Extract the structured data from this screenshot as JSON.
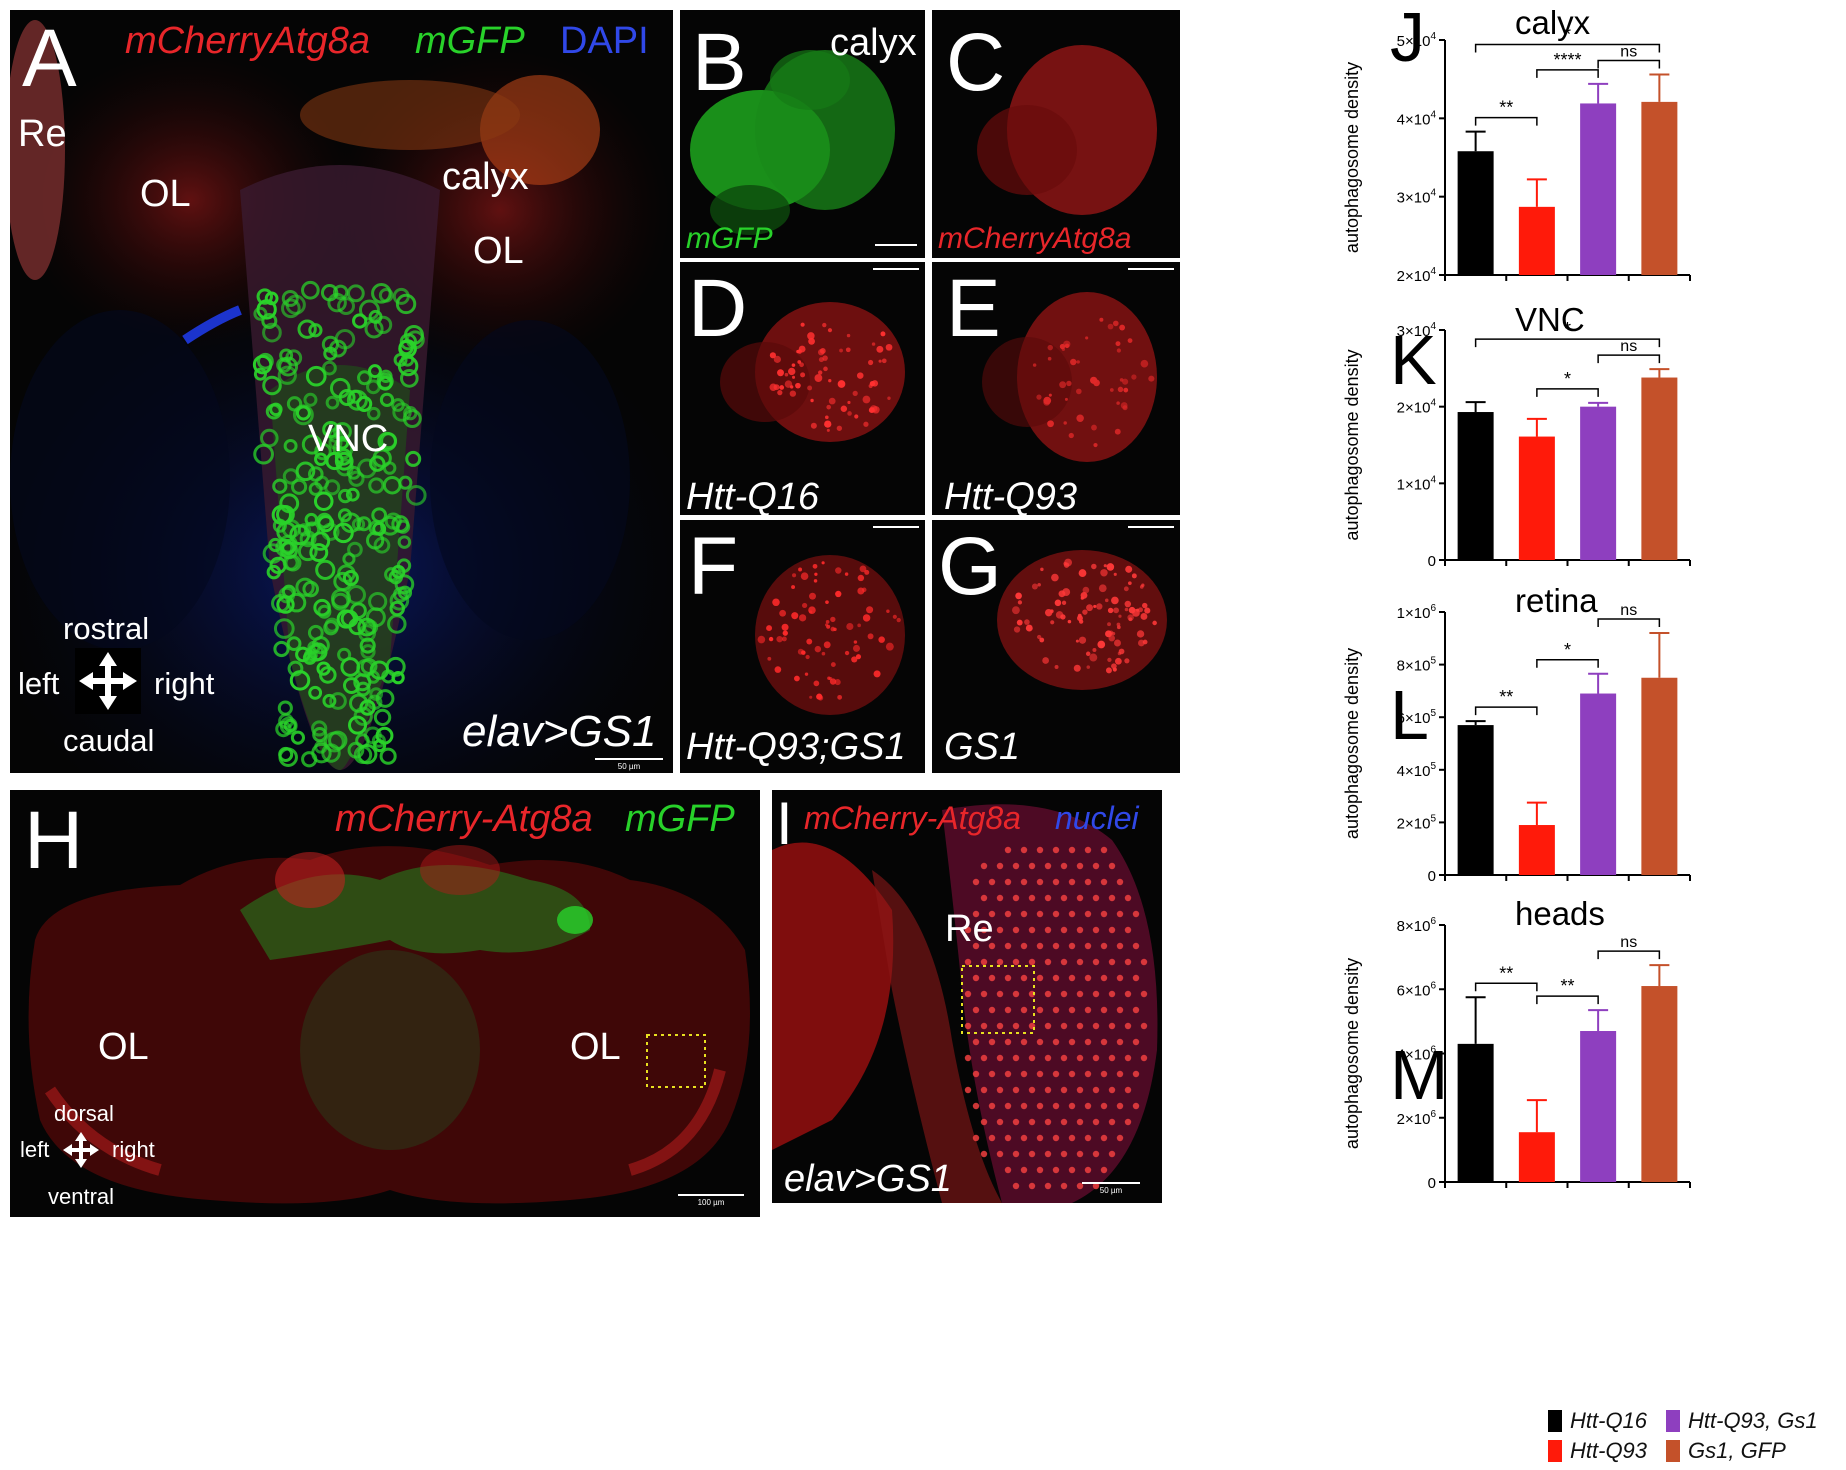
{
  "panels": {
    "A": {
      "letter": "A",
      "title_red": "mCherryAtg8a",
      "title_green": "mGFP",
      "title_blue": "DAPI",
      "labels": {
        "re": "Re",
        "ol_left": "OL",
        "ol_right": "OL",
        "calyx": "calyx",
        "vnc": "VNC"
      },
      "axes": {
        "rostral": "rostral",
        "caudal": "caudal",
        "left": "left",
        "right": "right"
      },
      "genotype": "elav>GS1",
      "scale": "50 µm"
    },
    "B": {
      "letter": "B",
      "title": "calyx",
      "stain": "mGFP"
    },
    "C": {
      "letter": "C",
      "stain": "mCherryAtg8a"
    },
    "D": {
      "letter": "D",
      "genotype": "Htt-Q16"
    },
    "E": {
      "letter": "E",
      "genotype": "Htt-Q93"
    },
    "F": {
      "letter": "F",
      "genotype": "Htt-Q93;GS1"
    },
    "G": {
      "letter": "G",
      "genotype": "GS1"
    },
    "H": {
      "letter": "H",
      "title_red": "mCherry-Atg8a",
      "title_green": "mGFP",
      "labels": {
        "ol_left": "OL",
        "ol_right": "OL"
      },
      "axes": {
        "dorsal": "dorsal",
        "ventral": "ventral",
        "left": "left",
        "right": "right"
      },
      "scale": "100 µm"
    },
    "I": {
      "letter": "I",
      "title_red": "mCherry-Atg8a",
      "title_blue": "nuclei",
      "labels": {
        "re": "Re"
      },
      "genotype": "elav>GS1",
      "scale": "50 µm"
    }
  },
  "colors": {
    "q16": "#000000",
    "q93": "#ff1a0a",
    "q93gs1": "#8e3fbf",
    "gs1gfp": "#c4512a"
  },
  "legend": [
    {
      "label": "Htt-Q16",
      "color": "#000000"
    },
    {
      "label": "Htt-Q93",
      "color": "#ff1a0a"
    },
    {
      "label": "Htt-Q93, Gs1",
      "color": "#8e3fbf"
    },
    {
      "label": "Gs1, GFP",
      "color": "#c4512a"
    }
  ],
  "chart_data": [
    {
      "panel": "J",
      "type": "bar",
      "title": "calyx",
      "ylabel": "autophagosome density",
      "categories": [
        "Htt-Q16",
        "Htt-Q93",
        "Htt-Q93, Gs1",
        "Gs1, GFP"
      ],
      "values": [
        35800,
        28700,
        41900,
        42100
      ],
      "errors": [
        2500,
        3500,
        2500,
        3500
      ],
      "ylim": [
        20000,
        50000
      ],
      "yticks": [
        {
          "v": 20000,
          "base": "2×10",
          "exp": "4"
        },
        {
          "v": 30000,
          "base": "3×10",
          "exp": "4"
        },
        {
          "v": 40000,
          "base": "4×10",
          "exp": "4"
        },
        {
          "v": 50000,
          "base": "5×10",
          "exp": "4"
        }
      ],
      "significance": [
        {
          "from": 0,
          "to": 1,
          "label": "**"
        },
        {
          "from": 1,
          "to": 2,
          "label": "****"
        },
        {
          "from": 0,
          "to": 3,
          "label": "*"
        },
        {
          "from": 2,
          "to": 3,
          "label": "ns"
        }
      ]
    },
    {
      "panel": "K",
      "type": "bar",
      "title": "VNC",
      "ylabel": "autophagosome density",
      "categories": [
        "Htt-Q16",
        "Htt-Q93",
        "Htt-Q93, Gs1",
        "Gs1, GFP"
      ],
      "values": [
        19300,
        16100,
        20000,
        23800
      ],
      "errors": [
        1300,
        2300,
        500,
        1100
      ],
      "ylim": [
        0,
        30000
      ],
      "yticks": [
        {
          "v": 0,
          "base": "0",
          "exp": ""
        },
        {
          "v": 10000,
          "base": "1×10",
          "exp": "4"
        },
        {
          "v": 20000,
          "base": "2×10",
          "exp": "4"
        },
        {
          "v": 30000,
          "base": "3×10",
          "exp": "4"
        }
      ],
      "significance": [
        {
          "from": 1,
          "to": 2,
          "label": "*"
        },
        {
          "from": 0,
          "to": 3,
          "label": "*"
        },
        {
          "from": 2,
          "to": 3,
          "label": "ns"
        }
      ]
    },
    {
      "panel": "L",
      "type": "bar",
      "title": "retina",
      "ylabel": "autophagosome density",
      "categories": [
        "Htt-Q16",
        "Htt-Q93",
        "Htt-Q93, Gs1",
        "Gs1, GFP"
      ],
      "values": [
        570000,
        190000,
        690000,
        750000
      ],
      "errors": [
        15000,
        85000,
        75000,
        170000
      ],
      "ylim": [
        0,
        1000000
      ],
      "yticks": [
        {
          "v": 0,
          "base": "0",
          "exp": ""
        },
        {
          "v": 200000,
          "base": "2×10",
          "exp": "5"
        },
        {
          "v": 400000,
          "base": "4×10",
          "exp": "5"
        },
        {
          "v": 600000,
          "base": "6×10",
          "exp": "5"
        },
        {
          "v": 800000,
          "base": "8×10",
          "exp": "5"
        },
        {
          "v": 1000000,
          "base": "1×10",
          "exp": "6"
        }
      ],
      "significance": [
        {
          "from": 0,
          "to": 1,
          "label": "**"
        },
        {
          "from": 1,
          "to": 2,
          "label": "*"
        },
        {
          "from": 2,
          "to": 3,
          "label": "ns"
        }
      ]
    },
    {
      "panel": "M",
      "type": "bar",
      "title": "heads",
      "ylabel": "autophagosome density",
      "categories": [
        "Htt-Q16",
        "Htt-Q93",
        "Htt-Q93, Gs1",
        "Gs1, GFP"
      ],
      "values": [
        4300000,
        1550000,
        4700000,
        6100000
      ],
      "errors": [
        1450000,
        1000000,
        650000,
        650000
      ],
      "ylim": [
        0,
        8000000
      ],
      "yticks": [
        {
          "v": 0,
          "base": "0",
          "exp": ""
        },
        {
          "v": 2000000,
          "base": "2×10",
          "exp": "6"
        },
        {
          "v": 4000000,
          "base": "4×10",
          "exp": "6"
        },
        {
          "v": 6000000,
          "base": "6×10",
          "exp": "6"
        },
        {
          "v": 8000000,
          "base": "8×10",
          "exp": "6"
        }
      ],
      "significance": [
        {
          "from": 0,
          "to": 1,
          "label": "**"
        },
        {
          "from": 1,
          "to": 2,
          "label": "**"
        },
        {
          "from": 2,
          "to": 3,
          "label": "ns"
        }
      ]
    }
  ]
}
